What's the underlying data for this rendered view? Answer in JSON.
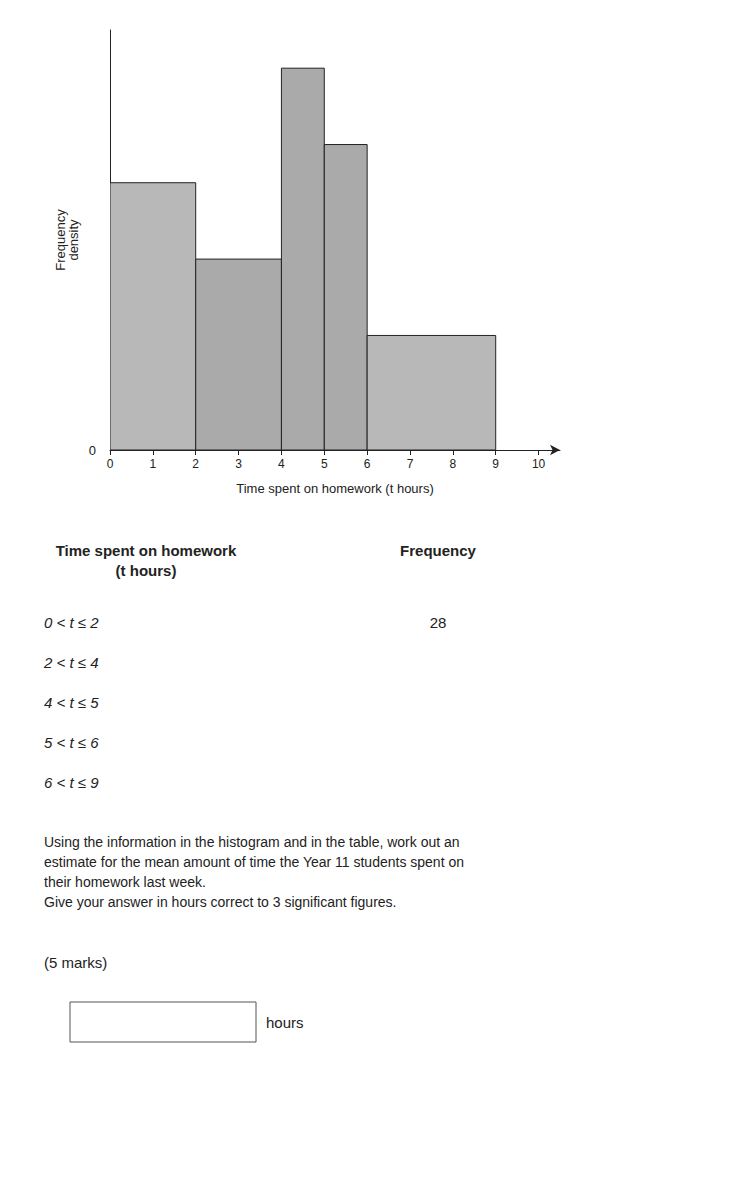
{
  "chart_data": {
    "type": "histogram",
    "bins": [
      0,
      2,
      4,
      5,
      6,
      9
    ],
    "values": [
      14,
      10,
      20,
      16,
      6
    ],
    "colors": [
      "#b8b8b8",
      "#aaaaaa",
      "#aaaaaa",
      "#aaaaaa",
      "#b8b8b8"
    ],
    "xlabel": "Time spent on homework (t hours)",
    "ylabel": "Frequency\ndensity",
    "xlim": [
      0,
      10.5
    ],
    "ylim": [
      0,
      22
    ],
    "xticks": [
      0,
      1,
      2,
      3,
      4,
      5,
      6,
      7,
      8,
      9,
      10
    ],
    "tick_labels": "x",
    "grid": false,
    "origin_label": "0",
    "table": {
      "columns": [
        "Time spent on homework\n(t hours)",
        "Frequency"
      ],
      "rows": [
        [
          "0 < t ≤ 2",
          28
        ],
        [
          "2 < t ≤ 4",
          null
        ],
        [
          "4 < t ≤ 5",
          null
        ],
        [
          "5 < t ≤ 6",
          null
        ],
        [
          "6 < t ≤ 9",
          null
        ]
      ]
    },
    "question": "Using the information in the histogram and in the table, work out an\nestimate for the mean amount of time the Year 11 students spent on\ntheir homework last week.\nGive your answer in hours correct to 3 significant figures.",
    "marks": "(5 marks)",
    "answer_label": "hours"
  }
}
